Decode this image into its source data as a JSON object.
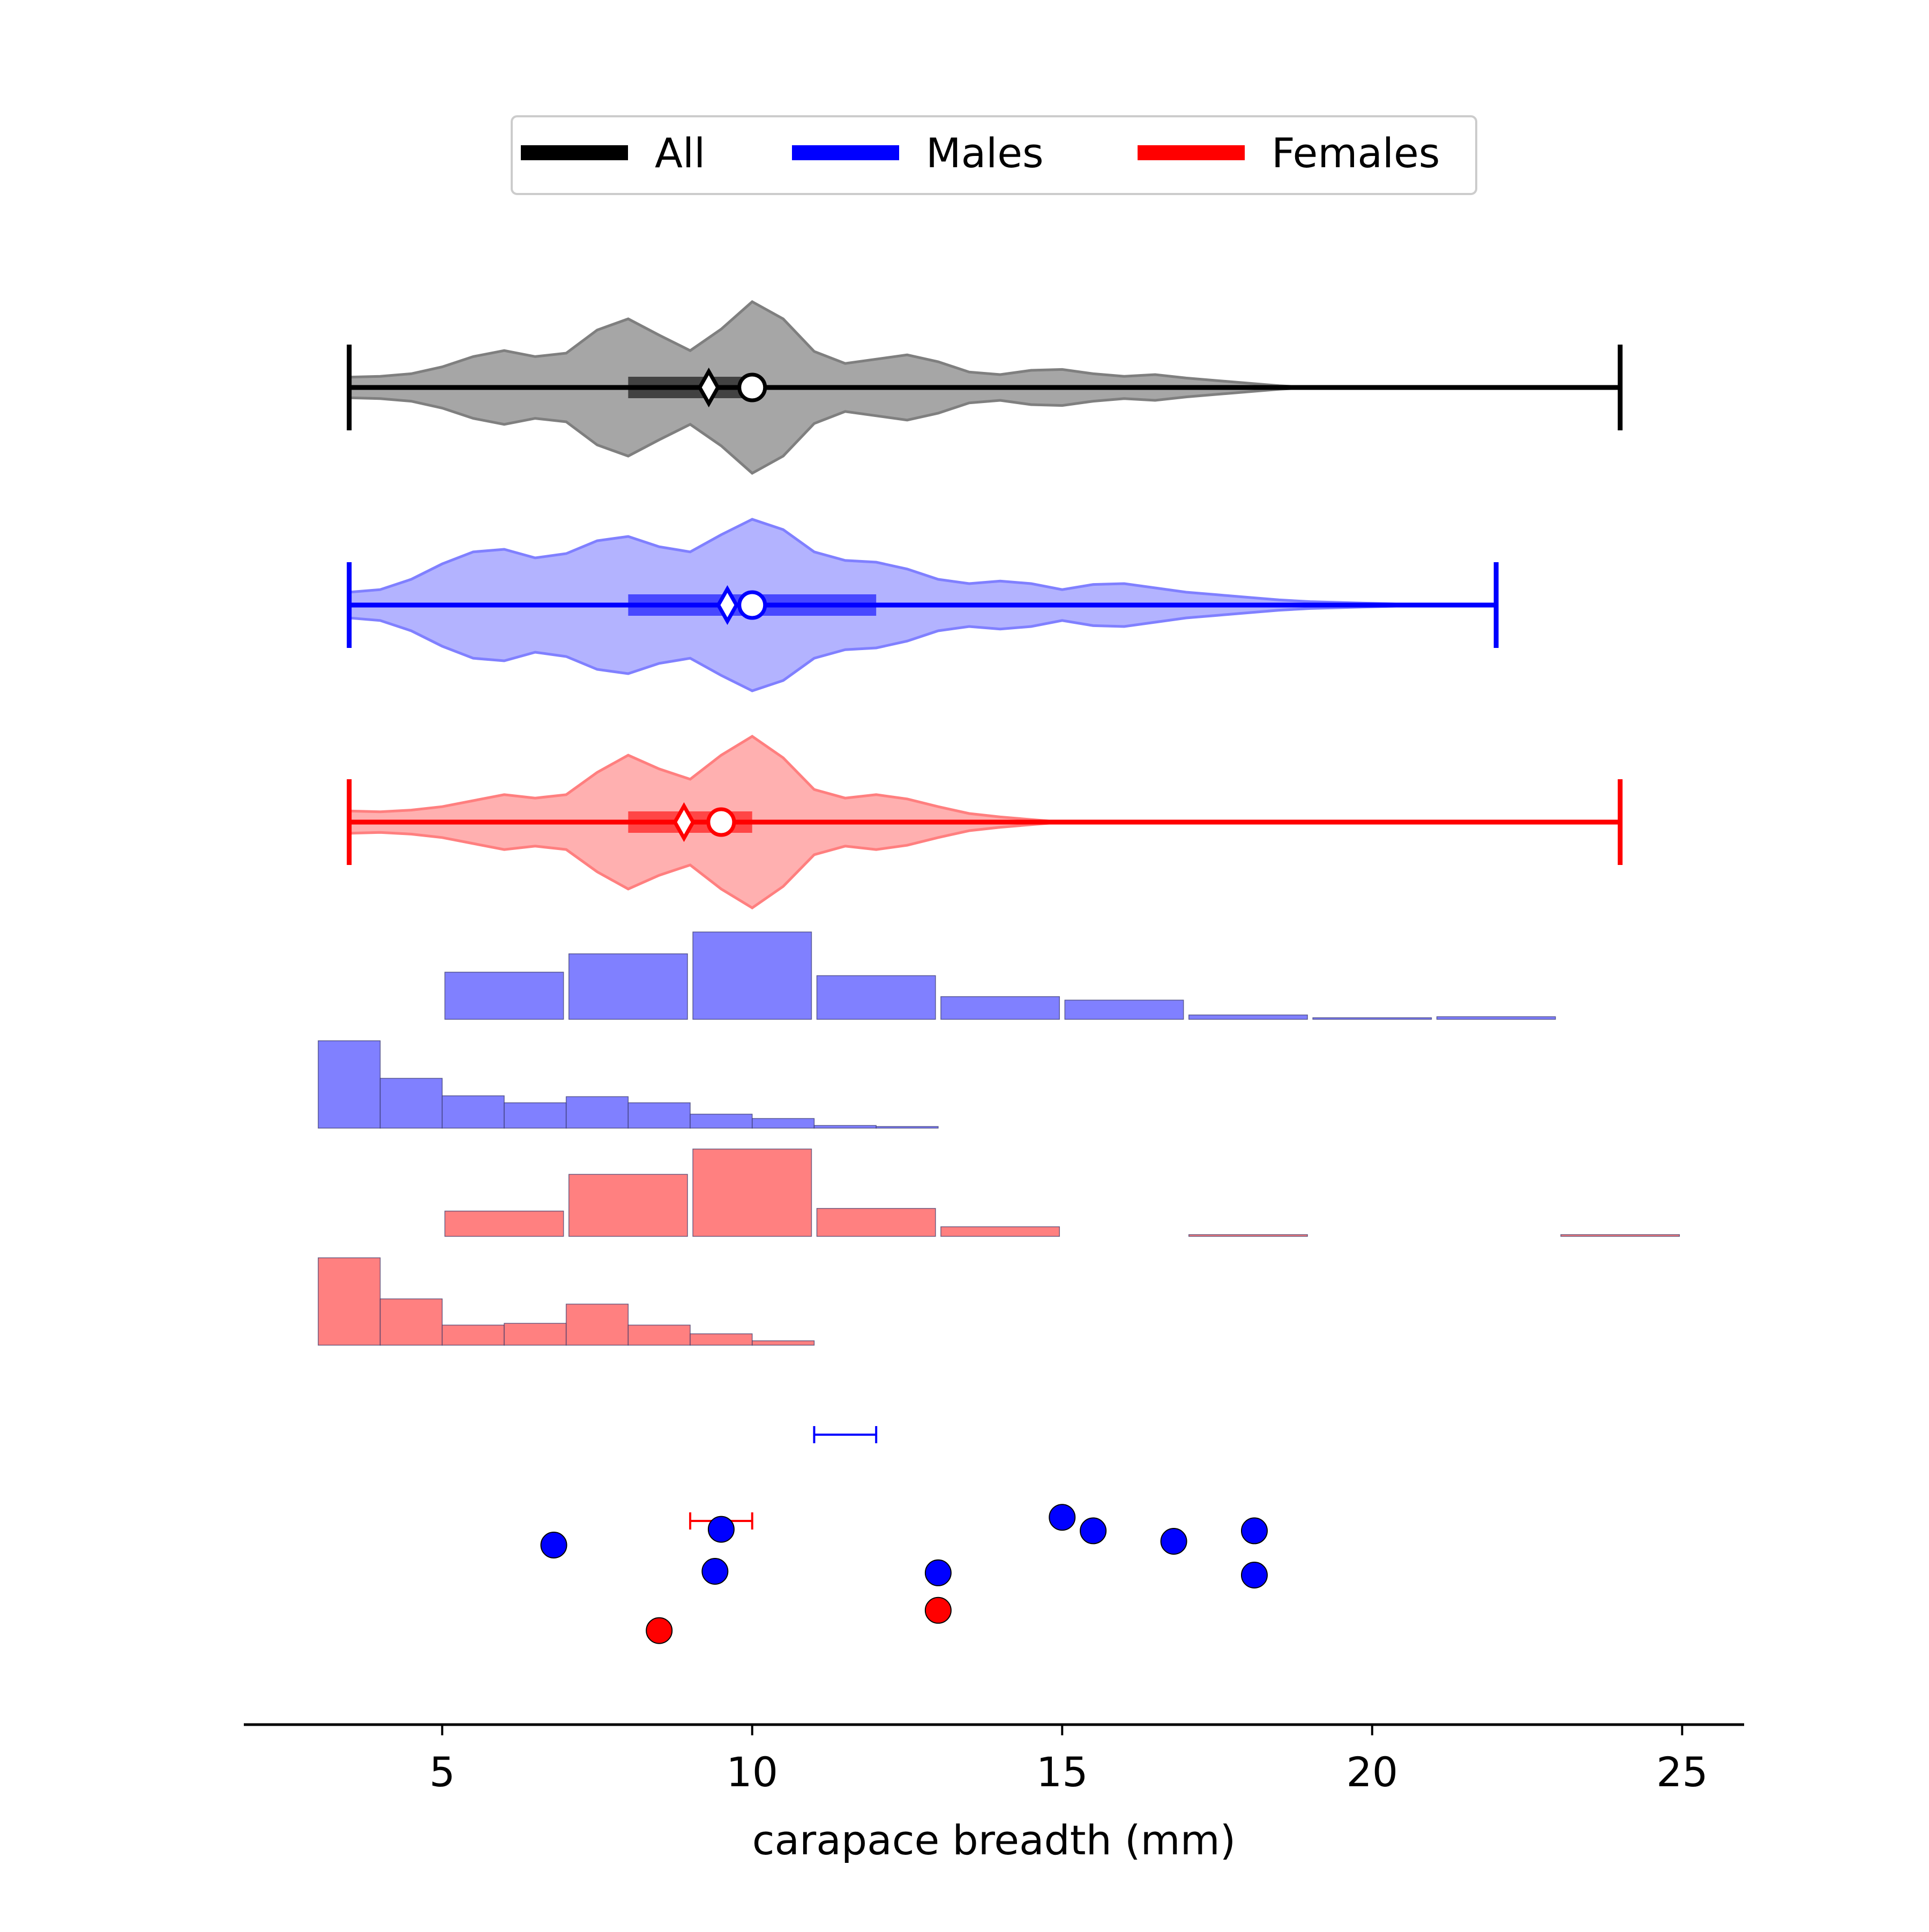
{
  "chart_data": {
    "type": "violin+histogram+scatter",
    "xlabel": "carapace breadth (mm)",
    "xlim": [
      1.8,
      26
    ],
    "xticks": [
      5,
      10,
      15,
      20,
      25
    ],
    "xtick_labels": [
      "5",
      "10",
      "15",
      "20",
      "25"
    ],
    "legend": {
      "placement": "top-center",
      "entries": [
        {
          "label": "All",
          "color": "#000000"
        },
        {
          "label": "Males",
          "color": "#0000ff"
        },
        {
          "label": "Females",
          "color": "#ff0000"
        }
      ]
    },
    "violins": [
      {
        "group": "All",
        "line_color": "#000000",
        "fill_color": "#a6a6a6",
        "edge_color": "#7f7f7f",
        "min": 3.5,
        "max": 24,
        "q1": 8,
        "q3": 10,
        "median": 9.3,
        "mean": 10,
        "density": [
          [
            3.5,
            0.12
          ],
          [
            4,
            0.13
          ],
          [
            4.5,
            0.16
          ],
          [
            5,
            0.24
          ],
          [
            5.5,
            0.36
          ],
          [
            6,
            0.43
          ],
          [
            6.5,
            0.36
          ],
          [
            7,
            0.4
          ],
          [
            7.5,
            0.67
          ],
          [
            8,
            0.8
          ],
          [
            8.5,
            0.61
          ],
          [
            9,
            0.43
          ],
          [
            9.5,
            0.68
          ],
          [
            10,
            1.0
          ],
          [
            10.5,
            0.8
          ],
          [
            11,
            0.42
          ],
          [
            11.5,
            0.28
          ],
          [
            12,
            0.33
          ],
          [
            12.5,
            0.38
          ],
          [
            13,
            0.3
          ],
          [
            13.5,
            0.18
          ],
          [
            14,
            0.15
          ],
          [
            14.5,
            0.2
          ],
          [
            15,
            0.21
          ],
          [
            15.5,
            0.16
          ],
          [
            16,
            0.13
          ],
          [
            16.5,
            0.15
          ],
          [
            17,
            0.11
          ],
          [
            17.5,
            0.08
          ],
          [
            18,
            0.05
          ],
          [
            18.5,
            0.02
          ],
          [
            19,
            0.0
          ]
        ]
      },
      {
        "group": "Males",
        "line_color": "#0000ff",
        "fill_color": "#b3b3ff",
        "edge_color": "#8080ff",
        "min": 3.5,
        "max": 22,
        "q1": 8,
        "q3": 12,
        "median": 9.6,
        "mean": 10,
        "density": [
          [
            3.5,
            0.15
          ],
          [
            4,
            0.18
          ],
          [
            4.5,
            0.3
          ],
          [
            5,
            0.48
          ],
          [
            5.5,
            0.62
          ],
          [
            6,
            0.65
          ],
          [
            6.5,
            0.55
          ],
          [
            7,
            0.6
          ],
          [
            7.5,
            0.75
          ],
          [
            8,
            0.8
          ],
          [
            8.5,
            0.68
          ],
          [
            9,
            0.62
          ],
          [
            9.5,
            0.82
          ],
          [
            10,
            1.0
          ],
          [
            10.5,
            0.88
          ],
          [
            11,
            0.62
          ],
          [
            11.5,
            0.52
          ],
          [
            12,
            0.5
          ],
          [
            12.5,
            0.42
          ],
          [
            13,
            0.3
          ],
          [
            13.5,
            0.25
          ],
          [
            14,
            0.28
          ],
          [
            14.5,
            0.25
          ],
          [
            15,
            0.18
          ],
          [
            15.5,
            0.24
          ],
          [
            16,
            0.25
          ],
          [
            16.5,
            0.2
          ],
          [
            17,
            0.15
          ],
          [
            17.5,
            0.12
          ],
          [
            18,
            0.09
          ],
          [
            18.5,
            0.06
          ],
          [
            19,
            0.04
          ],
          [
            20,
            0.02
          ],
          [
            21,
            0.0
          ]
        ]
      },
      {
        "group": "Females",
        "line_color": "#ff0000",
        "fill_color": "#ffb0b0",
        "edge_color": "#ff7f7f",
        "min": 3.5,
        "max": 24,
        "q1": 8,
        "q3": 10,
        "median": 8.9,
        "mean": 9.5,
        "density": [
          [
            3.5,
            0.13
          ],
          [
            4,
            0.12
          ],
          [
            4.5,
            0.14
          ],
          [
            5,
            0.18
          ],
          [
            5.5,
            0.25
          ],
          [
            6,
            0.32
          ],
          [
            6.5,
            0.28
          ],
          [
            7,
            0.32
          ],
          [
            7.5,
            0.58
          ],
          [
            8,
            0.78
          ],
          [
            8.5,
            0.62
          ],
          [
            9,
            0.5
          ],
          [
            9.5,
            0.78
          ],
          [
            10,
            1.0
          ],
          [
            10.5,
            0.75
          ],
          [
            11,
            0.38
          ],
          [
            11.5,
            0.28
          ],
          [
            12,
            0.32
          ],
          [
            12.5,
            0.27
          ],
          [
            13,
            0.18
          ],
          [
            13.5,
            0.1
          ],
          [
            14,
            0.06
          ],
          [
            14.5,
            0.03
          ],
          [
            15,
            0.0
          ]
        ]
      }
    ],
    "histograms": [
      {
        "color": "#8080ff",
        "edges": [
          5,
          7,
          9,
          11,
          13,
          15,
          17,
          19,
          21,
          23
        ],
        "values": [
          0.54,
          0.75,
          1.0,
          0.5,
          0.26,
          0.22,
          0.05,
          0.01,
          0.03
        ]
      },
      {
        "color": "#8080ff",
        "edges": [
          3,
          4,
          5,
          6,
          7,
          8,
          9,
          10,
          11,
          12,
          13
        ],
        "values": [
          1.0,
          0.57,
          0.37,
          0.29,
          0.36,
          0.29,
          0.16,
          0.11,
          0.03,
          0.01
        ]
      },
      {
        "color": "#ff8080",
        "edges": [
          5,
          7,
          9,
          11,
          13,
          15,
          17,
          19,
          21,
          23,
          25
        ],
        "values": [
          0.29,
          0.71,
          1.0,
          0.32,
          0.11,
          0.0,
          0.02,
          0.0,
          0.0,
          0.02
        ]
      },
      {
        "color": "#ff8080",
        "edges": [
          3,
          4,
          5,
          6,
          7,
          8,
          9,
          10,
          11
        ],
        "values": [
          1.0,
          0.53,
          0.23,
          0.25,
          0.47,
          0.23,
          0.13,
          0.05
        ]
      }
    ],
    "intervals": [
      {
        "color": "#0000ff",
        "low": 11,
        "high": 12
      },
      {
        "color": "#ff0000",
        "low": 9,
        "high": 10
      }
    ],
    "points": [
      {
        "x": 6.8,
        "level": 0.55,
        "color": "#0000ff"
      },
      {
        "x": 9.5,
        "level": 0.76,
        "color": "#0000ff"
      },
      {
        "x": 9.4,
        "level": 0.2,
        "color": "#0000ff"
      },
      {
        "x": 13.0,
        "level": 0.18,
        "color": "#0000ff"
      },
      {
        "x": 15.0,
        "level": 0.92,
        "color": "#0000ff"
      },
      {
        "x": 15.5,
        "level": 0.74,
        "color": "#0000ff"
      },
      {
        "x": 16.8,
        "level": 0.6,
        "color": "#0000ff"
      },
      {
        "x": 18.1,
        "level": 0.74,
        "color": "#0000ff"
      },
      {
        "x": 18.1,
        "level": 0.15,
        "color": "#0000ff"
      },
      {
        "x": 8.5,
        "level": -0.59,
        "color": "#ff0000"
      },
      {
        "x": 13.0,
        "level": -0.32,
        "color": "#ff0000"
      }
    ]
  }
}
